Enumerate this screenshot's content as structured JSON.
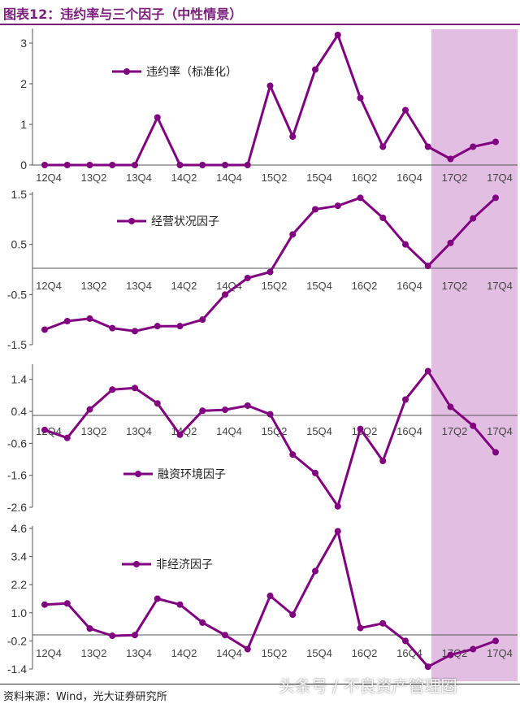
{
  "title": "图表12：违约率与三个因子（中性情景）",
  "source": "资料来源：Wind，光大证券研究所",
  "watermark": "头条号 / 不良资产管理圈",
  "colors": {
    "series": "#800080",
    "forecast_band": "#E2BFE2",
    "axis": "#555555",
    "title": "#7a1f7a"
  },
  "chart_data": [
    {
      "type": "line",
      "name": "违约率（标准化）",
      "legend": "违约率（标准化）",
      "x": [
        "12Q4",
        "13Q1",
        "13Q2",
        "13Q3",
        "13Q4",
        "14Q1",
        "14Q2",
        "14Q3",
        "14Q4",
        "15Q1",
        "15Q2",
        "15Q3",
        "15Q4",
        "16Q1",
        "16Q2",
        "16Q3",
        "16Q4",
        "17Q1",
        "17Q2",
        "17Q3",
        "17Q4"
      ],
      "tick_labels": [
        "12Q4",
        "13Q2",
        "13Q4",
        "14Q2",
        "14Q4",
        "15Q2",
        "15Q4",
        "16Q2",
        "16Q4",
        "17Q2",
        "17Q4"
      ],
      "y_ticks": [
        "0",
        "1",
        "2",
        "3"
      ],
      "values": [
        0,
        0,
        0,
        0,
        0,
        1.17,
        0,
        0,
        0,
        0,
        1.95,
        0.7,
        2.35,
        3.2,
        1.65,
        0.45,
        1.35,
        0.45,
        0.15,
        0.45,
        0.57
      ],
      "ylim": [
        0,
        3.3
      ],
      "forecast_shaded_from": "17Q1"
    },
    {
      "type": "line",
      "name": "经营状况因子",
      "legend": "经营状况因子",
      "x": [
        "12Q4",
        "13Q1",
        "13Q2",
        "13Q3",
        "13Q4",
        "14Q1",
        "14Q2",
        "14Q3",
        "14Q4",
        "15Q1",
        "15Q2",
        "15Q3",
        "15Q4",
        "16Q1",
        "16Q2",
        "16Q3",
        "16Q4",
        "17Q1",
        "17Q2",
        "17Q3",
        "17Q4"
      ],
      "tick_labels": [
        "12Q4",
        "13Q2",
        "13Q4",
        "14Q2",
        "14Q4",
        "15Q2",
        "15Q4",
        "16Q2",
        "16Q4",
        "17Q2",
        "17Q4"
      ],
      "y_ticks": [
        "1.5",
        "0.5",
        "-0.5",
        "-1.5"
      ],
      "values": [
        -1.2,
        -1.03,
        -0.98,
        -1.17,
        -1.23,
        -1.13,
        -1.13,
        -1.0,
        -0.5,
        -0.17,
        -0.05,
        0.7,
        1.2,
        1.27,
        1.43,
        1.03,
        0.5,
        0.07,
        0.53,
        1.02,
        1.43
      ],
      "ylim": [
        -1.5,
        1.5
      ],
      "forecast_shaded_from": "17Q1"
    },
    {
      "type": "line",
      "name": "融资环境因子",
      "legend": "融资环境因子",
      "x": [
        "12Q4",
        "13Q1",
        "13Q2",
        "13Q3",
        "13Q4",
        "14Q1",
        "14Q2",
        "14Q3",
        "14Q4",
        "15Q1",
        "15Q2",
        "15Q3",
        "15Q4",
        "16Q1",
        "16Q2",
        "16Q3",
        "16Q4",
        "17Q1",
        "17Q2",
        "17Q3",
        "17Q4"
      ],
      "tick_labels": [
        "12Q4",
        "13Q2",
        "13Q4",
        "14Q2",
        "14Q4",
        "15Q2",
        "15Q4",
        "16Q2",
        "16Q4",
        "17Q2",
        "17Q4"
      ],
      "y_ticks": [
        "1.4",
        "0.4",
        "-0.6",
        "-1.6",
        "-2.6"
      ],
      "values": [
        -0.18,
        -0.43,
        0.46,
        1.08,
        1.13,
        0.65,
        -0.33,
        0.42,
        0.45,
        0.58,
        0.31,
        -0.95,
        -1.53,
        -2.57,
        -0.15,
        -1.15,
        0.77,
        1.66,
        0.54,
        -0.05,
        -0.88
      ],
      "ylim": [
        -2.6,
        1.8
      ],
      "forecast_shaded_from": "17Q1"
    },
    {
      "type": "line",
      "name": "非经济因子",
      "legend": "非经济因子",
      "x": [
        "12Q4",
        "13Q1",
        "13Q2",
        "13Q3",
        "13Q4",
        "14Q1",
        "14Q2",
        "14Q3",
        "14Q4",
        "15Q1",
        "15Q2",
        "15Q3",
        "15Q4",
        "16Q1",
        "16Q2",
        "16Q3",
        "16Q4",
        "17Q1",
        "17Q2",
        "17Q3",
        "17Q4"
      ],
      "tick_labels": [
        "12Q4",
        "13Q2",
        "13Q4",
        "14Q2",
        "14Q4",
        "15Q2",
        "15Q4",
        "16Q2",
        "16Q4",
        "17Q2",
        "17Q4"
      ],
      "y_ticks": [
        "4.6",
        "3.4",
        "2.2",
        "1.0",
        "-0.2",
        "-1.4"
      ],
      "values": [
        1.35,
        1.4,
        0.33,
        0.02,
        0.05,
        1.6,
        1.35,
        0.58,
        0.05,
        -0.55,
        1.72,
        0.92,
        2.78,
        4.48,
        0.35,
        0.55,
        -0.2,
        -1.3,
        -0.8,
        -0.55,
        -0.2
      ],
      "ylim": [
        -1.4,
        4.6
      ],
      "forecast_shaded_from": "17Q1"
    }
  ]
}
